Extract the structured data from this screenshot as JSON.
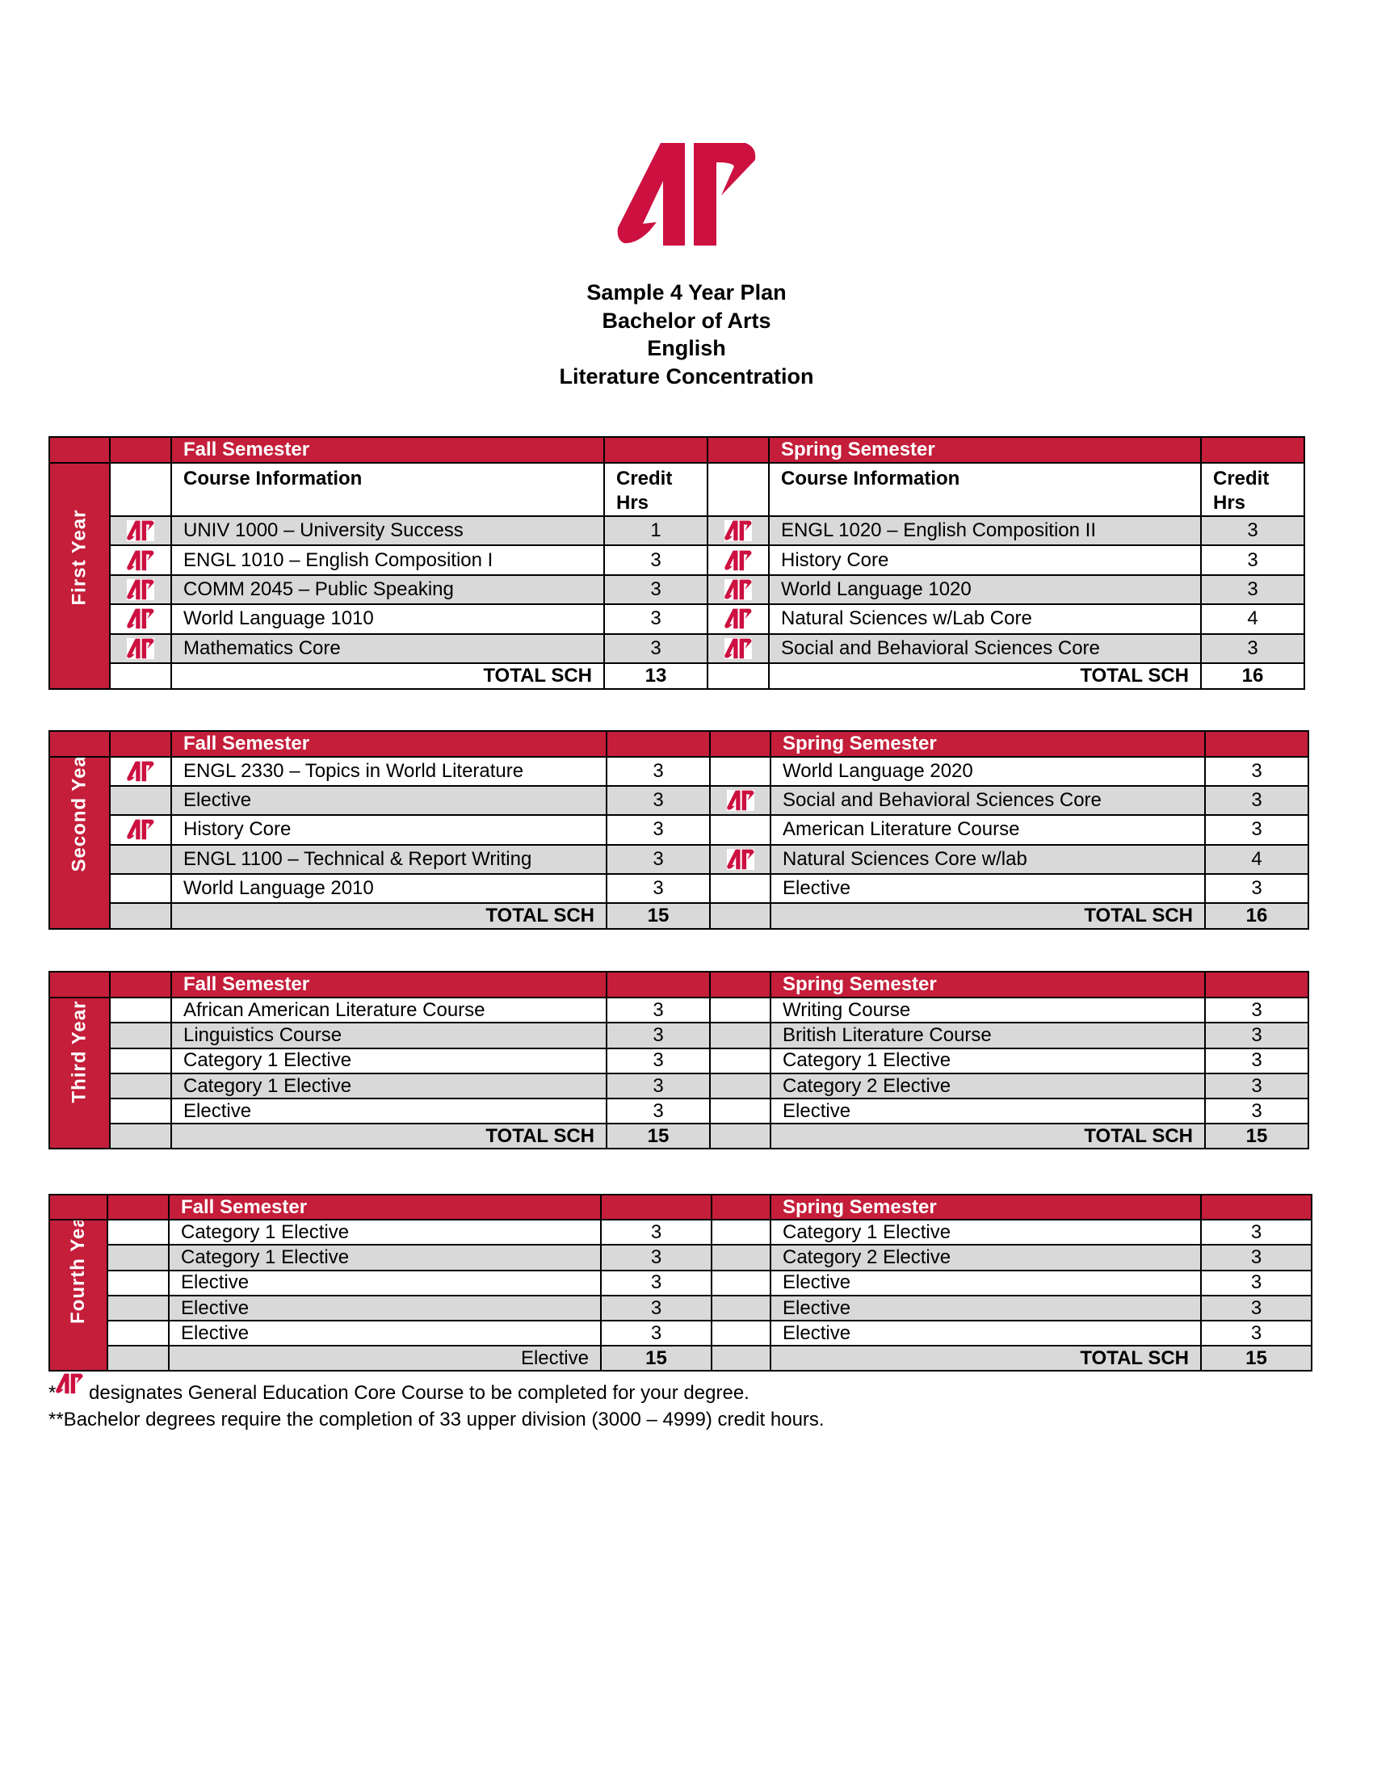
{
  "brand": {
    "logo_text": "AP",
    "red": "#c41e3a",
    "logo_red": "#cc1040",
    "row_gray": "#d9d9d9"
  },
  "title": [
    "Sample 4 Year Plan",
    "Bachelor of Arts",
    "English",
    "Literature Concentration"
  ],
  "column_headers": {
    "course_info": "Course Information",
    "credit_hrs_line1": "Credit",
    "credit_hrs_line2": "Hrs"
  },
  "years": [
    {
      "label": "First Year",
      "fall_header": "Fall Semester",
      "spring_header": "Spring Semester",
      "show_column_headers": true,
      "fall": [
        {
          "course": "UNIV 1000 – University Success",
          "hrs": "1",
          "core": true
        },
        {
          "course": "ENGL 1010 – English Composition I",
          "hrs": "3",
          "core": true
        },
        {
          "course": "COMM 2045 – Public Speaking",
          "hrs": "3",
          "core": true
        },
        {
          "course": "World Language 1010",
          "hrs": "3",
          "core": true
        },
        {
          "course": "Mathematics Core",
          "hrs": "3",
          "core": true
        }
      ],
      "spring": [
        {
          "course": "ENGL 1020 – English Composition II",
          "hrs": "3",
          "core": true
        },
        {
          "course": "History Core",
          "hrs": "3",
          "core": true
        },
        {
          "course": "World Language 1020",
          "hrs": "3",
          "core": true
        },
        {
          "course": "Natural Sciences w/Lab Core",
          "hrs": "4",
          "core": true
        },
        {
          "course": "Social and Behavioral Sciences Core",
          "hrs": "3",
          "core": true
        }
      ],
      "fall_total_label": "TOTAL SCH",
      "fall_total": "13",
      "spring_total_label": "TOTAL SCH",
      "spring_total": "16"
    },
    {
      "label": "Second Year",
      "fall_header": "Fall Semester",
      "spring_header": "Spring Semester",
      "show_column_headers": false,
      "fall": [
        {
          "course": "ENGL 2330 – Topics in World Literature",
          "hrs": "3",
          "core": true
        },
        {
          "course": "Elective",
          "hrs": "3",
          "core": false
        },
        {
          "course": "History Core",
          "hrs": "3",
          "core": true
        },
        {
          "course": "ENGL 1100 – Technical & Report Writing",
          "hrs": "3",
          "core": false
        },
        {
          "course": "World Language 2010",
          "hrs": "3",
          "core": false
        }
      ],
      "spring": [
        {
          "course": "World Language 2020",
          "hrs": "3",
          "core": false
        },
        {
          "course": "Social and Behavioral Sciences Core",
          "hrs": "3",
          "core": true
        },
        {
          "course": "American Literature Course",
          "hrs": "3",
          "core": false
        },
        {
          "course": "Natural Sciences Core w/lab",
          "hrs": "4",
          "core": true
        },
        {
          "course": "Elective",
          "hrs": "3",
          "core": false
        }
      ],
      "fall_total_label": "TOTAL SCH",
      "fall_total": "15",
      "spring_total_label": "TOTAL SCH",
      "spring_total": "16"
    },
    {
      "label": "Third Year",
      "fall_header": "Fall Semester",
      "spring_header": "Spring Semester",
      "show_column_headers": false,
      "fall": [
        {
          "course": "African American Literature Course",
          "hrs": "3",
          "core": false
        },
        {
          "course": "Linguistics Course",
          "hrs": "3",
          "core": false
        },
        {
          "course": "Category 1 Elective",
          "hrs": "3",
          "core": false
        },
        {
          "course": "Category 1 Elective",
          "hrs": "3",
          "core": false
        },
        {
          "course": "Elective",
          "hrs": "3",
          "core": false
        }
      ],
      "spring": [
        {
          "course": "Writing Course",
          "hrs": "3",
          "core": false
        },
        {
          "course": "British Literature Course",
          "hrs": "3",
          "core": false
        },
        {
          "course": "Category 1 Elective",
          "hrs": "3",
          "core": false
        },
        {
          "course": "Category 2 Elective",
          "hrs": "3",
          "core": false
        },
        {
          "course": "Elective",
          "hrs": "3",
          "core": false
        }
      ],
      "fall_total_label": "TOTAL SCH",
      "fall_total": "15",
      "spring_total_label": "TOTAL SCH",
      "spring_total": "15"
    },
    {
      "label": "Fourth Year",
      "fall_header": "Fall Semester",
      "spring_header": "Spring Semester",
      "show_column_headers": false,
      "fall": [
        {
          "course": "Category 1 Elective",
          "hrs": "3",
          "core": false
        },
        {
          "course": "Category 1 Elective",
          "hrs": "3",
          "core": false
        },
        {
          "course": "Elective",
          "hrs": "3",
          "core": false
        },
        {
          "course": "Elective",
          "hrs": "3",
          "core": false
        },
        {
          "course": "Elective",
          "hrs": "3",
          "core": false
        }
      ],
      "spring": [
        {
          "course": "Category 1 Elective",
          "hrs": "3",
          "core": false
        },
        {
          "course": "Category 2 Elective",
          "hrs": "3",
          "core": false
        },
        {
          "course": "Elective",
          "hrs": "3",
          "core": false
        },
        {
          "course": "Elective",
          "hrs": "3",
          "core": false
        },
        {
          "course": "Elective",
          "hrs": "3",
          "core": false
        }
      ],
      "fall_total_label": "Elective",
      "fall_total": "15",
      "spring_total_label": "TOTAL SCH",
      "spring_total": "15"
    }
  ],
  "footnotes": {
    "core_prefix": "*",
    "core_note": " designates General Education Core Course to be completed for your degree.",
    "upper_division_note": "**Bachelor degrees require the completion of 33 upper division (3000 – 4999) credit hours."
  }
}
